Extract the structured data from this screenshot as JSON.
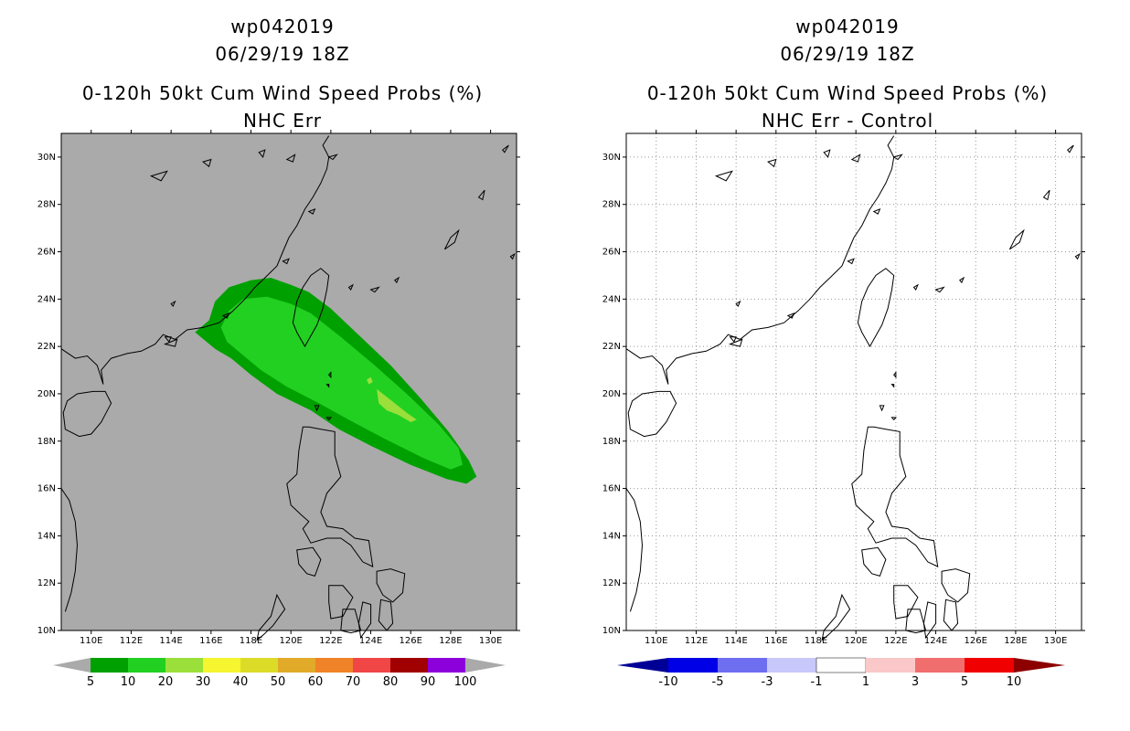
{
  "panels": [
    {
      "id": "left",
      "title_lines": [
        "wp042019",
        "06/29/19 18Z",
        "0-120h 50kt Cum Wind Speed Probs (%)",
        "NHC Err"
      ],
      "background": "#aaaaaa",
      "colorbar": {
        "labels": [
          "5",
          "10",
          "20",
          "30",
          "40",
          "50",
          "60",
          "70",
          "80",
          "90",
          "100"
        ],
        "colors": [
          "#00a000",
          "#22d022",
          "#9bdf3a",
          "#f5f530",
          "#dcdc28",
          "#e1aa28",
          "#f08228",
          "#f04646",
          "#a00000",
          "#8c00dc"
        ],
        "arrow_color": "#aaaaaa"
      }
    },
    {
      "id": "right",
      "title_lines": [
        "wp042019",
        "06/29/19 18Z",
        "0-120h 50kt Cum Wind Speed Probs (%)",
        "NHC Err - Control"
      ],
      "background": "#ffffff",
      "colorbar": {
        "labels": [
          "-10",
          "-5",
          "-3",
          "-1",
          "1",
          "3",
          "5",
          "10"
        ],
        "colors": [
          "#0000e6",
          "#6e6ef0",
          "#c8c8fa",
          "#ffffff",
          "#fac8c8",
          "#f06e6e",
          "#f00000"
        ],
        "arrow_left": "#000096",
        "arrow_right": "#8c0000"
      }
    }
  ],
  "axes": {
    "lat_labels": [
      "30N",
      "28N",
      "26N",
      "24N",
      "22N",
      "20N",
      "18N",
      "16N",
      "14N",
      "12N",
      "10N"
    ],
    "lon_labels": [
      "110E",
      "112E",
      "114E",
      "116E",
      "118E",
      "120E",
      "122E",
      "124E",
      "126E",
      "128E",
      "130E"
    ],
    "lat_range": [
      10,
      31
    ],
    "lon_range": [
      108.5,
      131.3
    ]
  },
  "probability_regions": [
    {
      "level": "5",
      "color": "#00a000"
    },
    {
      "level": "10",
      "color": "#22d022"
    },
    {
      "level": "20",
      "color": "#9bdf3a"
    }
  ]
}
